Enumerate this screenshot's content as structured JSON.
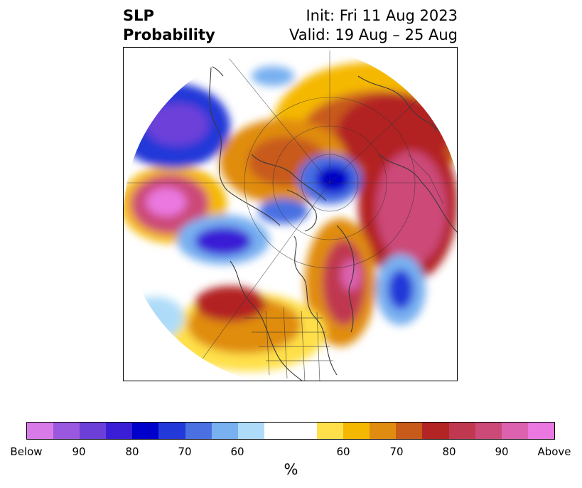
{
  "title": {
    "variable": "SLP",
    "subtitle": "Probability",
    "init": "Init: Fri 11 Aug 2023",
    "valid": "Valid: 19 Aug – 25 Aug"
  },
  "map": {
    "projection": "north-polar-stereographic",
    "features": [
      "coastlines",
      "country-borders",
      "us-state-borders",
      "graticule"
    ]
  },
  "colorbar": {
    "colors": [
      "#d87ae8",
      "#9a58e0",
      "#6c3fd9",
      "#3a1ed6",
      "#0000cc",
      "#2338d8",
      "#4a70e2",
      "#78b0f0",
      "#aedcf8",
      "#ffffff",
      "#ffffff",
      "#ffe04a",
      "#f5b800",
      "#e08c10",
      "#c85a1a",
      "#b32424",
      "#c03850",
      "#cc4a78",
      "#dc62b0",
      "#ea78e0"
    ],
    "tick_labels": [
      "Below",
      "90",
      "80",
      "70",
      "60",
      "60",
      "70",
      "80",
      "90",
      "Above"
    ],
    "unit": "%"
  }
}
